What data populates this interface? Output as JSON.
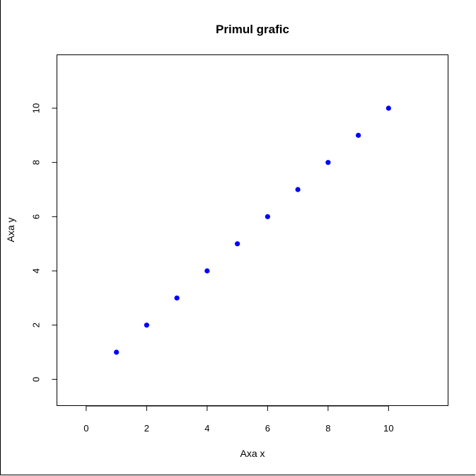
{
  "chart_data": {
    "type": "scatter",
    "title": "Primul grafic",
    "xlabel": "Axa x",
    "ylabel": "Axa y",
    "x": [
      1,
      2,
      3,
      4,
      5,
      6,
      7,
      8,
      9,
      10
    ],
    "y": [
      1,
      2,
      3,
      4,
      5,
      6,
      7,
      8,
      9,
      10
    ],
    "xlim": [
      -0.5,
      11.5
    ],
    "ylim": [
      -0.5,
      11.5
    ],
    "x_ticks": [
      0,
      2,
      4,
      6,
      8,
      10
    ],
    "y_ticks": [
      0,
      2,
      4,
      6,
      8,
      10
    ],
    "point_color": "#0000ff",
    "grid": false,
    "legend": "none"
  }
}
